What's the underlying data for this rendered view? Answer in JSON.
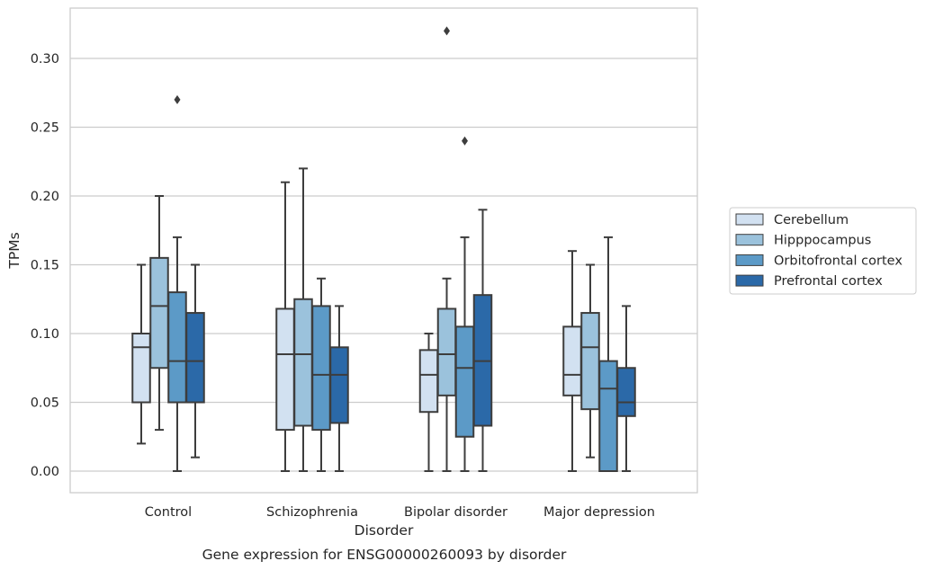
{
  "caption": "Gene expression for ENSG00000260093 by disorder",
  "chart_data": {
    "type": "box",
    "xlabel": "Disorder",
    "ylabel": "TPMs",
    "ylim": [
      -0.015,
      0.337
    ],
    "yticks": [
      0.0,
      0.05,
      0.1,
      0.15,
      0.2,
      0.25,
      0.3
    ],
    "ytick_labels": [
      "0.00",
      "0.05",
      "0.10",
      "0.15",
      "0.20",
      "0.25",
      "0.30"
    ],
    "grid": "horizontal",
    "legend_position": "right",
    "categories": [
      "Control",
      "Schizophrenia",
      "Bipolar disorder",
      "Major depression"
    ],
    "series": [
      {
        "name": "Cerebellum",
        "color": "#d2e1f1",
        "boxes": [
          {
            "whislo": 0.02,
            "q1": 0.05,
            "med": 0.09,
            "q3": 0.1,
            "whishi": 0.15,
            "fliers": []
          },
          {
            "whislo": 0.0,
            "q1": 0.03,
            "med": 0.085,
            "q3": 0.118,
            "whishi": 0.21,
            "fliers": []
          },
          {
            "whislo": 0.0,
            "q1": 0.043,
            "med": 0.07,
            "q3": 0.088,
            "whishi": 0.1,
            "fliers": []
          },
          {
            "whislo": 0.0,
            "q1": 0.055,
            "med": 0.07,
            "q3": 0.105,
            "whishi": 0.16,
            "fliers": []
          }
        ]
      },
      {
        "name": "Hipppocampus",
        "color": "#9bc2dc",
        "boxes": [
          {
            "whislo": 0.03,
            "q1": 0.075,
            "med": 0.12,
            "q3": 0.155,
            "whishi": 0.2,
            "fliers": []
          },
          {
            "whislo": 0.0,
            "q1": 0.033,
            "med": 0.085,
            "q3": 0.125,
            "whishi": 0.22,
            "fliers": []
          },
          {
            "whislo": 0.0,
            "q1": 0.055,
            "med": 0.085,
            "q3": 0.118,
            "whishi": 0.14,
            "fliers": [
              0.32
            ]
          },
          {
            "whislo": 0.01,
            "q1": 0.045,
            "med": 0.09,
            "q3": 0.115,
            "whishi": 0.15,
            "fliers": []
          }
        ]
      },
      {
        "name": "Orbitofrontal cortex",
        "color": "#5c9ac7",
        "boxes": [
          {
            "whislo": 0.0,
            "q1": 0.05,
            "med": 0.08,
            "q3": 0.13,
            "whishi": 0.17,
            "fliers": [
              0.27
            ]
          },
          {
            "whislo": 0.0,
            "q1": 0.03,
            "med": 0.07,
            "q3": 0.12,
            "whishi": 0.14,
            "fliers": []
          },
          {
            "whislo": 0.0,
            "q1": 0.025,
            "med": 0.075,
            "q3": 0.105,
            "whishi": 0.17,
            "fliers": [
              0.24
            ]
          },
          {
            "whislo": 0.0,
            "q1": 0.0,
            "med": 0.06,
            "q3": 0.08,
            "whishi": 0.17,
            "fliers": []
          }
        ]
      },
      {
        "name": "Prefrontal cortex",
        "color": "#2b69a8",
        "boxes": [
          {
            "whislo": 0.01,
            "q1": 0.05,
            "med": 0.08,
            "q3": 0.115,
            "whishi": 0.15,
            "fliers": []
          },
          {
            "whislo": 0.0,
            "q1": 0.035,
            "med": 0.07,
            "q3": 0.09,
            "whishi": 0.12,
            "fliers": []
          },
          {
            "whislo": 0.0,
            "q1": 0.033,
            "med": 0.08,
            "q3": 0.128,
            "whishi": 0.19,
            "fliers": []
          },
          {
            "whislo": 0.0,
            "q1": 0.04,
            "med": 0.05,
            "q3": 0.075,
            "whishi": 0.12,
            "fliers": []
          }
        ]
      }
    ]
  }
}
